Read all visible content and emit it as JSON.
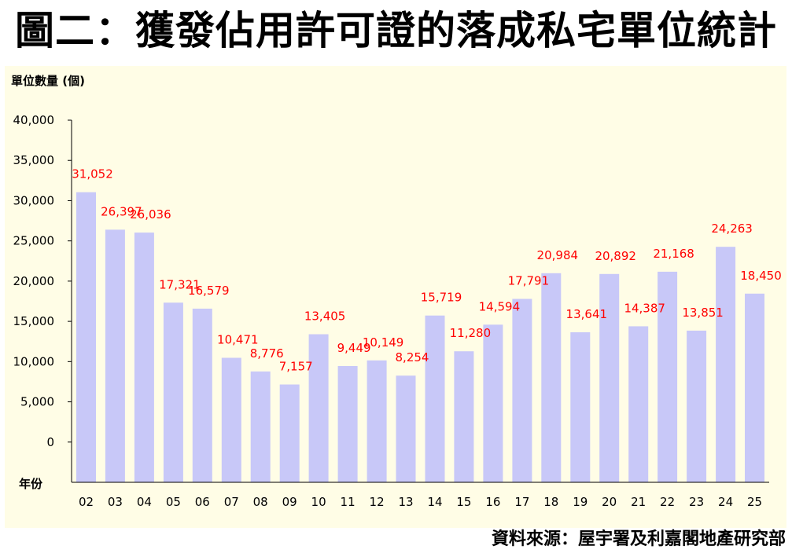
{
  "title": "圖二：獲發佔用許可證的落成私宅單位統計",
  "source": "資料來源：屋宇署及利嘉閣地產研究部",
  "colors": {
    "bar": "#c8c8f8",
    "label": "#ff0000",
    "panel": "#fffde6"
  },
  "chart_data": {
    "type": "bar",
    "ylabel": "單位數量 (個)",
    "xlabel": "年份",
    "categories": [
      "02",
      "03",
      "04",
      "05",
      "06",
      "07",
      "08",
      "09",
      "10",
      "11",
      "12",
      "13",
      "14",
      "15",
      "16",
      "17",
      "18",
      "19",
      "20",
      "21",
      "22",
      "23",
      "24",
      "25"
    ],
    "values": [
      31052,
      26397,
      26036,
      17321,
      16579,
      10471,
      8776,
      7157,
      13405,
      9449,
      10149,
      8254,
      15719,
      11280,
      14594,
      17791,
      20984,
      13641,
      20892,
      14387,
      21168,
      13851,
      24263,
      18450
    ],
    "value_labels": [
      "31,052",
      "26,397",
      "26,036",
      "17,321",
      "16,579",
      "10,471",
      "8,776",
      "7,157",
      "13,405",
      "9,449",
      "10,149",
      "8,254",
      "15,719",
      "11,280",
      "14,594",
      "17,791",
      "20,984",
      "13,641",
      "20,892",
      "14,387",
      "21,168",
      "13,851",
      "24,263",
      "18,450"
    ],
    "yticks": [
      "0",
      "5,000",
      "10,000",
      "15,000",
      "20,000",
      "25,000",
      "30,000",
      "35,000",
      "40,000"
    ],
    "ytick_values": [
      0,
      5000,
      10000,
      15000,
      20000,
      25000,
      30000,
      35000,
      40000
    ],
    "ylim": [
      -5000,
      40000
    ],
    "grid": false,
    "legend": "none"
  }
}
